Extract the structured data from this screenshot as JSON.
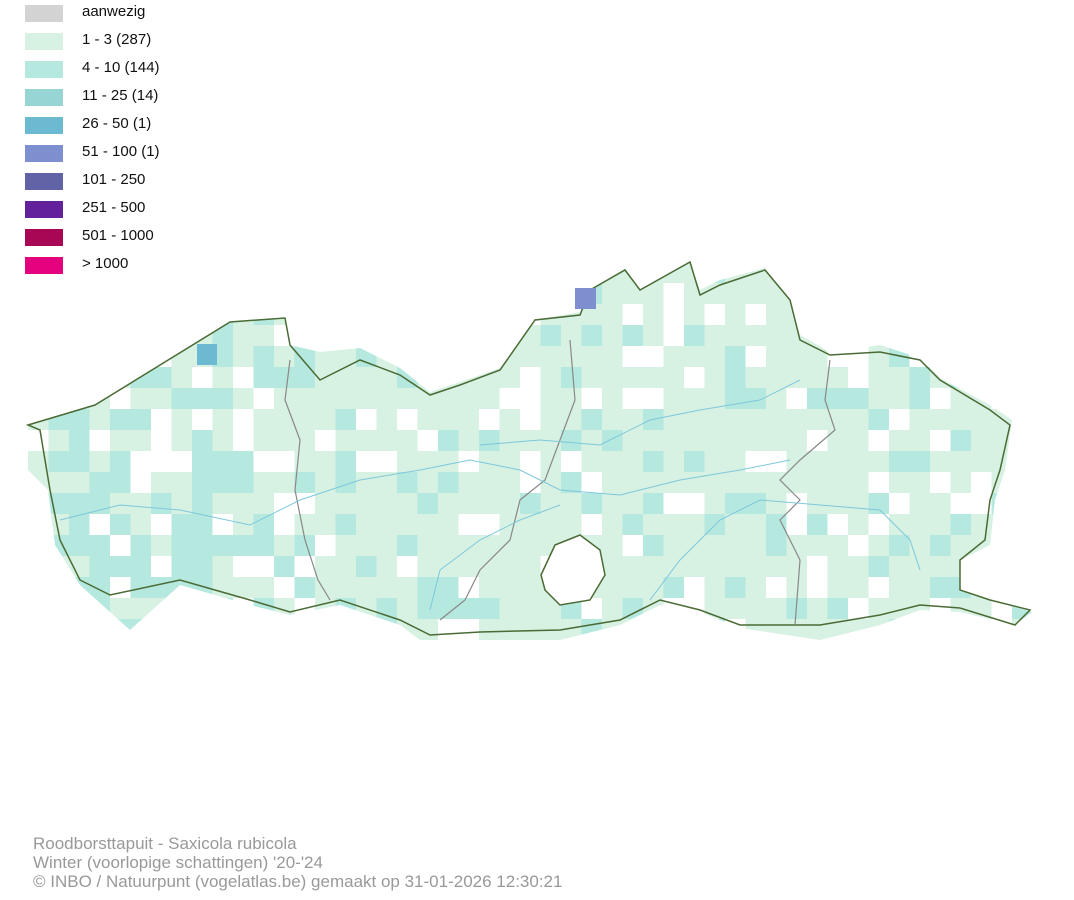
{
  "legend": [
    {
      "label": "aanwezig",
      "color": "#d3d3d3"
    },
    {
      "label": "1 - 3 (287)",
      "color": "#d7f1e3"
    },
    {
      "label": "4 - 10 (144)",
      "color": "#b5e8df"
    },
    {
      "label": "11 - 25 (14)",
      "color": "#96d5d4"
    },
    {
      "label": "26 - 50 (1)",
      "color": "#6cbad2"
    },
    {
      "label": "51 - 100 (1)",
      "color": "#7e8fd0"
    },
    {
      "label": "101 - 250",
      "color": "#6262a6"
    },
    {
      "label": "251 - 500",
      "color": "#63229b"
    },
    {
      "label": "501 - 1000",
      "color": "#a80755"
    },
    {
      "label": "> 1000",
      "color": "#e5027f"
    }
  ],
  "footer": {
    "species": "Roodborsttapuit - Saxicola rubicola",
    "period": "Winter (voorlopige schattingen) '20-'24",
    "credit": "© INBO / Natuurpunt (vogelatlas.be) gemaakt op 31-01-2026 12:30:21"
  }
}
